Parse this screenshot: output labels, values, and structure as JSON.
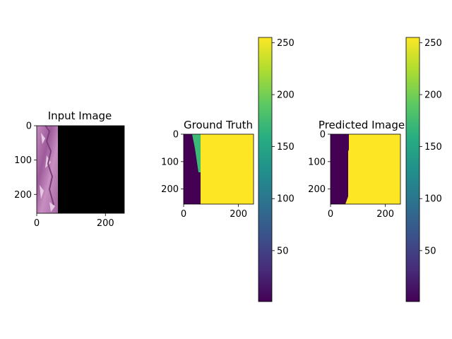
{
  "chart_data": [
    {
      "type": "heatmap",
      "title": "Input Image",
      "xlim": [
        0,
        255
      ],
      "ylim": [
        255,
        0
      ],
      "xticks": [
        0,
        200
      ],
      "yticks": [
        0,
        100,
        200
      ],
      "image_description_values": {
        "tissue_strip_fraction_of_width": 0.24,
        "tissue_color": "#b06aa8",
        "background_color": "#000000"
      }
    },
    {
      "type": "heatmap",
      "title": "Ground Truth",
      "xlim": [
        0,
        255
      ],
      "ylim": [
        255,
        0
      ],
      "xticks": [
        0,
        200
      ],
      "yticks": [
        0,
        100,
        200
      ],
      "colorbar": {
        "min": 1,
        "max": 255,
        "ticks": [
          50,
          100,
          150,
          200,
          250
        ]
      },
      "regions": [
        {
          "value": 1,
          "extent_x": [
            0,
            40
          ],
          "color": "#440154"
        },
        {
          "value": 175,
          "extent_x": [
            32,
            62
          ],
          "extent_y": [
            0,
            140
          ],
          "color": "#3bbb75"
        },
        {
          "value": 255,
          "extent_x": [
            62,
            255
          ],
          "color": "#fde725"
        }
      ]
    },
    {
      "type": "heatmap",
      "title": "Predicted Image",
      "xlim": [
        0,
        255
      ],
      "ylim": [
        255,
        0
      ],
      "xticks": [
        0,
        200
      ],
      "yticks": [
        0,
        100,
        200
      ],
      "colorbar": {
        "min": 1,
        "max": 255,
        "ticks": [
          50,
          100,
          150,
          200,
          250
        ]
      },
      "regions": [
        {
          "value": 1,
          "extent_x": [
            0,
            62
          ],
          "color": "#440154"
        },
        {
          "value": 255,
          "extent_x": [
            62,
            255
          ],
          "color": "#fde725"
        }
      ]
    }
  ]
}
